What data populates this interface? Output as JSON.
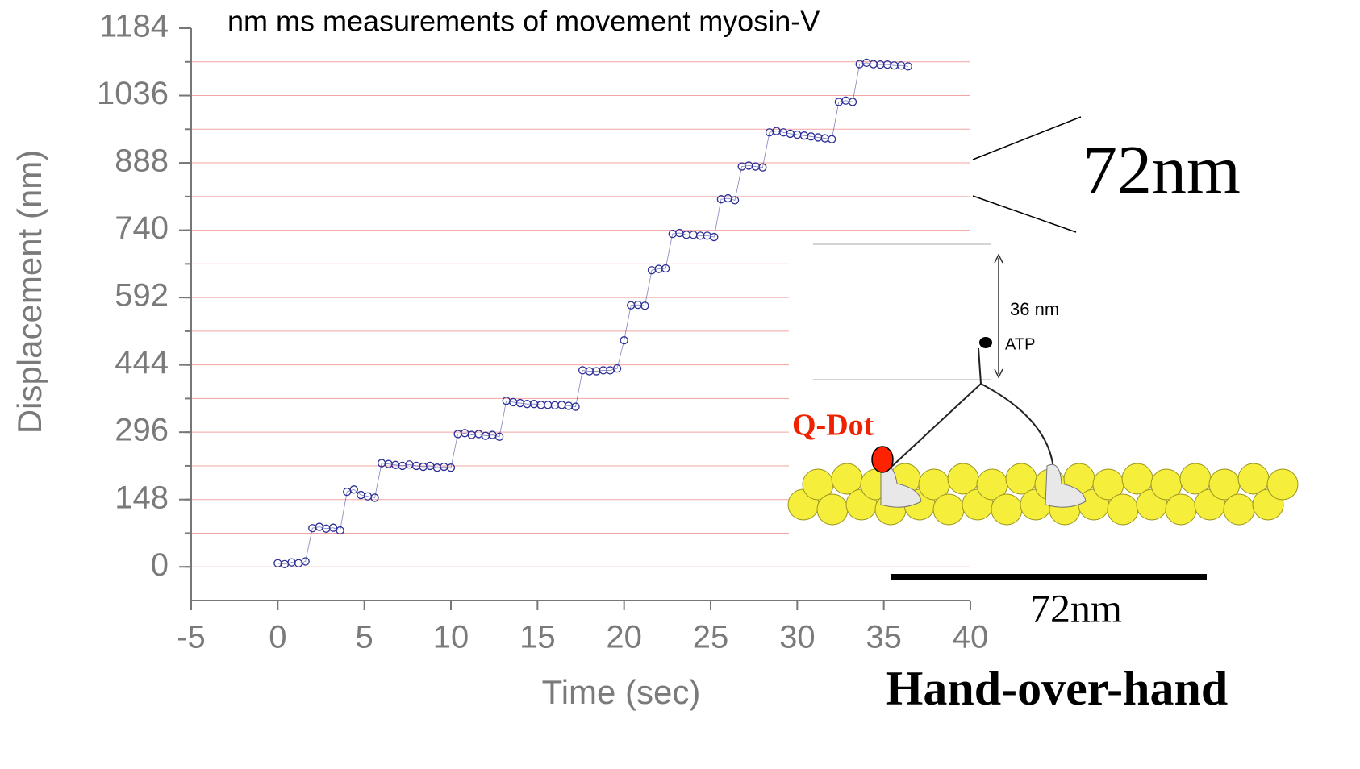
{
  "chart_data": {
    "type": "scatter",
    "title": "nm ms measurements of movement myosin-V",
    "xlabel": "Time (sec)",
    "ylabel": "Displacement (nm)",
    "xlim": [
      -5,
      40
    ],
    "xticks": [
      -5,
      0,
      5,
      10,
      15,
      20,
      25,
      30,
      35,
      40
    ],
    "ylim": [
      -74,
      1184
    ],
    "yticks": [
      0,
      148,
      296,
      444,
      592,
      740,
      888,
      1036,
      1184
    ],
    "grid_lines": [
      0,
      74,
      148,
      222,
      296,
      370,
      444,
      518,
      592,
      666,
      740,
      814,
      888,
      962,
      1036,
      1110
    ],
    "grid_color": "#f2a3a3",
    "line": true,
    "series": [
      {
        "name": "myosin-V",
        "color": "#2b2f96",
        "x": [
          0,
          0.4,
          0.8,
          1.2,
          1.6,
          2.0,
          2.4,
          2.8,
          3.2,
          3.6,
          4.0,
          4.4,
          4.8,
          5.2,
          5.6,
          6.0,
          6.4,
          6.8,
          7.2,
          7.6,
          8.0,
          8.4,
          8.8,
          9.2,
          9.6,
          10.0,
          10.4,
          10.8,
          11.2,
          11.6,
          12.0,
          12.4,
          12.8,
          13.2,
          13.6,
          14.0,
          14.4,
          14.8,
          15.2,
          15.6,
          16.0,
          16.4,
          16.8,
          17.2,
          17.6,
          18.0,
          18.4,
          18.8,
          19.2,
          19.6,
          20.0,
          20.4,
          20.8,
          21.2,
          21.6,
          22.0,
          22.4,
          22.8,
          23.2,
          23.6,
          24.0,
          24.4,
          24.8,
          25.2,
          25.6,
          26.0,
          26.4,
          26.8,
          27.2,
          27.6,
          28.0,
          28.4,
          28.8,
          29.2,
          29.6,
          30.0,
          30.4,
          30.8,
          31.2,
          31.6,
          32.0,
          32.4,
          32.8,
          33.2,
          33.6,
          34.0,
          34.4,
          34.8,
          35.2,
          35.6,
          36.0,
          36.4
        ],
        "values": [
          8,
          6,
          10,
          8,
          12,
          85,
          88,
          84,
          86,
          80,
          165,
          170,
          158,
          155,
          152,
          228,
          226,
          224,
          222,
          225,
          222,
          220,
          222,
          218,
          220,
          218,
          292,
          294,
          290,
          292,
          288,
          290,
          286,
          365,
          362,
          360,
          358,
          358,
          356,
          356,
          355,
          356,
          354,
          352,
          432,
          430,
          430,
          432,
          432,
          436,
          498,
          575,
          576,
          574,
          652,
          655,
          656,
          732,
          734,
          730,
          730,
          728,
          728,
          725,
          808,
          810,
          806,
          880,
          882,
          880,
          878,
          955,
          958,
          955,
          952,
          950,
          948,
          946,
          944,
          942,
          940,
          1022,
          1025,
          1022,
          1105,
          1108,
          1105,
          1104,
          1104,
          1102,
          1102,
          1100
        ]
      }
    ]
  },
  "annotations": {
    "step_big": "72nm",
    "step_36": "36 nm",
    "atp": "ATP",
    "qdot": "Q-Dot",
    "scale": "72nm",
    "caption": "Hand-over-hand"
  }
}
